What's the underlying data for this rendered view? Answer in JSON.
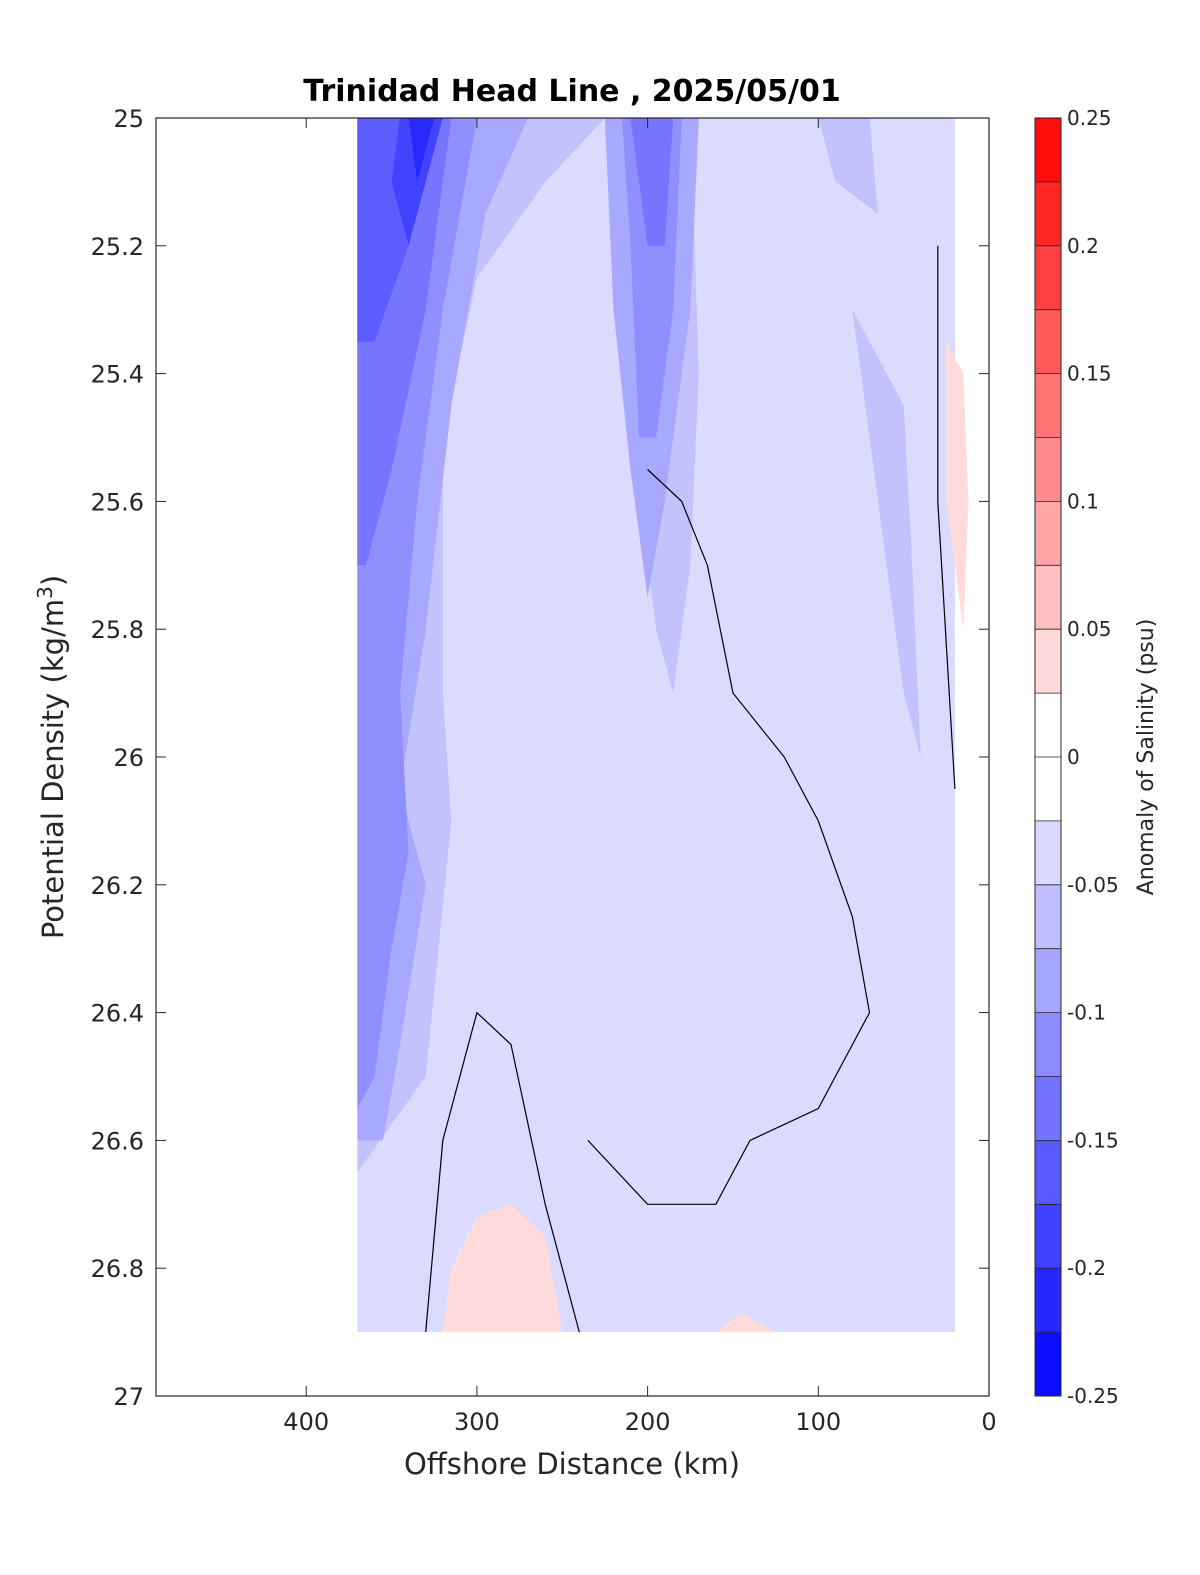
{
  "chart_data": {
    "type": "heatmap",
    "subtype": "filled-contour",
    "title": "Trinidad Head Line , 2025/05/01",
    "xlabel": "Offshore Distance (km)",
    "ylabel": "Potential Density (kg/m",
    "ylabel_sup": "3",
    "ylabel_close": ")",
    "x_reversed": true,
    "y_reversed": true,
    "xlim": [
      0,
      488
    ],
    "ylim": [
      25,
      27
    ],
    "x_ticks": [
      400,
      300,
      200,
      100,
      0
    ],
    "x_tick_labels": [
      "400",
      "300",
      "200",
      "100",
      "0"
    ],
    "y_ticks": [
      25,
      25.2,
      25.4,
      25.6,
      25.8,
      26,
      26.2,
      26.4,
      26.6,
      26.8,
      27
    ],
    "y_tick_labels": [
      "25",
      "25.2",
      "25.4",
      "25.6",
      "25.8",
      "26",
      "26.2",
      "26.4",
      "26.6",
      "26.8",
      "27"
    ],
    "colorbar": {
      "label": "Anomaly of Salinity (psu)",
      "range": [
        -0.25,
        0.25
      ],
      "ticks": [
        0.25,
        0.2,
        0.15,
        0.1,
        0.05,
        0,
        -0.05,
        -0.1,
        -0.15,
        -0.2,
        -0.25
      ],
      "tick_labels": [
        "0.25",
        "0.2",
        "0.15",
        "0.1",
        "0.05",
        "0",
        "-0.05",
        "-0.1",
        "-0.15",
        "-0.2",
        "-0.25"
      ],
      "levels": 20,
      "low_color": "#0000ff",
      "high_color": "#ff0000",
      "mid_color": "#ffffff"
    },
    "zero_contour_color": "#000000",
    "data_extent": {
      "x_range_km": [
        20,
        370
      ],
      "sigma_range": [
        25,
        26.9
      ]
    },
    "regions": [
      {
        "level": -0.035,
        "points": [
          [
            370,
            25
          ],
          [
            20,
            25
          ],
          [
            20,
            26.9
          ],
          [
            370,
            26.9
          ]
        ]
      },
      {
        "level": -0.06,
        "points": [
          [
            370,
            25
          ],
          [
            225,
            25
          ],
          [
            260,
            25.1
          ],
          [
            300,
            25.25
          ],
          [
            320,
            25.5
          ],
          [
            320,
            25.9
          ],
          [
            315,
            26.1
          ],
          [
            330,
            26.5
          ],
          [
            370,
            26.65
          ]
        ]
      },
      {
        "level": -0.085,
        "points": [
          [
            370,
            25
          ],
          [
            270,
            25
          ],
          [
            295,
            25.15
          ],
          [
            315,
            25.45
          ],
          [
            330,
            25.8
          ],
          [
            345,
            26.05
          ],
          [
            330,
            26.2
          ],
          [
            345,
            26.45
          ],
          [
            355,
            26.6
          ],
          [
            370,
            26.6
          ]
        ]
      },
      {
        "level": -0.11,
        "points": [
          [
            370,
            25
          ],
          [
            300,
            25
          ],
          [
            320,
            25.3
          ],
          [
            335,
            25.6
          ],
          [
            345,
            25.9
          ],
          [
            340,
            26.15
          ],
          [
            350,
            26.3
          ],
          [
            360,
            26.5
          ],
          [
            370,
            26.55
          ]
        ]
      },
      {
        "level": -0.135,
        "points": [
          [
            370,
            25
          ],
          [
            315,
            25
          ],
          [
            330,
            25.3
          ],
          [
            350,
            25.55
          ],
          [
            365,
            25.7
          ],
          [
            370,
            25.7
          ]
        ]
      },
      {
        "level": -0.16,
        "points": [
          [
            370,
            25
          ],
          [
            325,
            25
          ],
          [
            340,
            25.2
          ],
          [
            360,
            25.35
          ],
          [
            370,
            25.35
          ]
        ]
      },
      {
        "level": -0.185,
        "points": [
          [
            345,
            25
          ],
          [
            320,
            25
          ],
          [
            340,
            25.2
          ],
          [
            350,
            25.1
          ]
        ]
      },
      {
        "level": -0.21,
        "points": [
          [
            340,
            25
          ],
          [
            325,
            25
          ],
          [
            335,
            25.1
          ]
        ]
      },
      {
        "level": -0.06,
        "points": [
          [
            235,
            25
          ],
          [
            215,
            25
          ],
          [
            210,
            25.2
          ],
          [
            205,
            25.6
          ],
          [
            195,
            25.8
          ],
          [
            185,
            25.9
          ],
          [
            175,
            25.7
          ],
          [
            170,
            25.4
          ],
          [
            175,
            25
          ]
        ]
      },
      {
        "level": -0.085,
        "points": [
          [
            225,
            25
          ],
          [
            170,
            25
          ],
          [
            175,
            25.3
          ],
          [
            190,
            25.6
          ],
          [
            200,
            25.75
          ],
          [
            210,
            25.55
          ],
          [
            220,
            25.3
          ]
        ]
      },
      {
        "level": -0.11,
        "points": [
          [
            215,
            25
          ],
          [
            180,
            25
          ],
          [
            185,
            25.3
          ],
          [
            195,
            25.5
          ],
          [
            205,
            25.5
          ],
          [
            210,
            25.2
          ]
        ]
      },
      {
        "level": -0.135,
        "points": [
          [
            210,
            25
          ],
          [
            185,
            25
          ],
          [
            190,
            25.2
          ],
          [
            200,
            25.2
          ]
        ]
      },
      {
        "level": -0.06,
        "points": [
          [
            100,
            25
          ],
          [
            70,
            25
          ],
          [
            65,
            25.15
          ],
          [
            90,
            25.1
          ]
        ]
      },
      {
        "level": -0.06,
        "points": [
          [
            80,
            25.3
          ],
          [
            50,
            25.45
          ],
          [
            45,
            25.7
          ],
          [
            40,
            26
          ],
          [
            50,
            25.9
          ]
        ]
      }
    ],
    "zero_contours": [
      [
        [
          200,
          25.55
        ],
        [
          180,
          25.6
        ],
        [
          165,
          25.7
        ],
        [
          150,
          25.9
        ],
        [
          120,
          26.0
        ],
        [
          100,
          26.1
        ],
        [
          80,
          26.25
        ],
        [
          70,
          26.4
        ],
        [
          100,
          26.55
        ],
        [
          140,
          26.6
        ],
        [
          160,
          26.7
        ],
        [
          200,
          26.7
        ],
        [
          235,
          26.6
        ]
      ],
      [
        [
          30,
          25.2
        ],
        [
          30,
          25.6
        ],
        [
          20,
          26.05
        ]
      ],
      [
        [
          330,
          26.9
        ],
        [
          320,
          26.6
        ],
        [
          300,
          26.4
        ],
        [
          280,
          26.45
        ],
        [
          260,
          26.7
        ],
        [
          240,
          26.9
        ]
      ]
    ],
    "positive_regions": [
      {
        "level": 0.035,
        "points": [
          [
            320,
            26.9
          ],
          [
            315,
            26.8
          ],
          [
            300,
            26.72
          ],
          [
            280,
            26.7
          ],
          [
            260,
            26.75
          ],
          [
            250,
            26.9
          ]
        ]
      },
      {
        "level": 0.035,
        "points": [
          [
            160,
            26.9
          ],
          [
            145,
            26.87
          ],
          [
            125,
            26.9
          ]
        ]
      },
      {
        "level": 0.035,
        "points": [
          [
            25,
            25.35
          ],
          [
            15,
            25.4
          ],
          [
            12,
            25.6
          ],
          [
            15,
            25.8
          ],
          [
            25,
            25.6
          ]
        ]
      }
    ]
  }
}
